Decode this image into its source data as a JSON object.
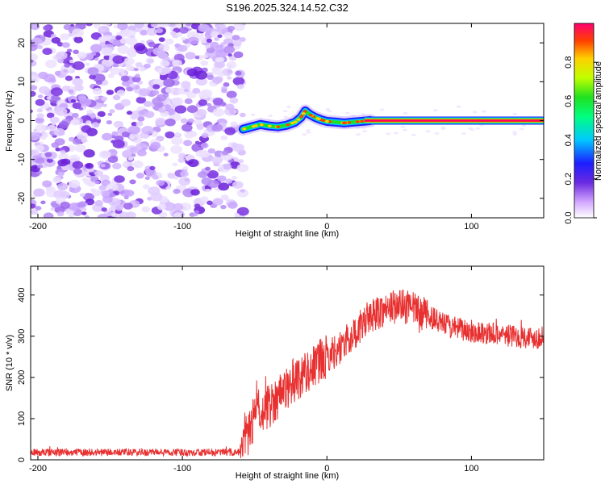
{
  "title": "S196.2025.324.14.52.C32",
  "spectrogram": {
    "type": "heatmap",
    "xlabel": "Height of straight line (km)",
    "ylabel": "Frequency (Hz)",
    "xlim": [
      -205,
      150
    ],
    "ylim": [
      -25,
      25
    ],
    "xticks": [
      -200,
      -100,
      0,
      100
    ],
    "xtick_labels": [
      "-200",
      "-100",
      "0",
      "100"
    ],
    "yticks": [
      -20,
      -10,
      0,
      10,
      20
    ],
    "ytick_labels": [
      "-20",
      "-10",
      "0",
      "10",
      "20"
    ],
    "noise_region_km": [
      -205,
      -58
    ],
    "signal_trace": [
      {
        "x": -58,
        "y": -2.2
      },
      {
        "x": -52,
        "y": -1.6
      },
      {
        "x": -46,
        "y": -1.0
      },
      {
        "x": -40,
        "y": -1.4
      },
      {
        "x": -34,
        "y": -1.6
      },
      {
        "x": -28,
        "y": -1.2
      },
      {
        "x": -22,
        "y": -0.4
      },
      {
        "x": -18,
        "y": 0.8
      },
      {
        "x": -15,
        "y": 2.5
      },
      {
        "x": -12,
        "y": 1.6
      },
      {
        "x": -8,
        "y": 0.8
      },
      {
        "x": -4,
        "y": 0.2
      },
      {
        "x": 0,
        "y": -0.2
      },
      {
        "x": 6,
        "y": -0.4
      },
      {
        "x": 12,
        "y": -0.6
      },
      {
        "x": 18,
        "y": -0.4
      },
      {
        "x": 24,
        "y": -0.2
      },
      {
        "x": 30,
        "y": 0.0
      },
      {
        "x": 150,
        "y": 0.0
      }
    ],
    "steady_line_start_km": 26,
    "colorbar": {
      "label": "Normalized spectral amplitude",
      "range": [
        0,
        1
      ],
      "ticks": [
        "0.0",
        "0.2",
        "0.4",
        "0.6",
        "0.8"
      ],
      "tick_values": [
        0.0,
        0.2,
        0.4,
        0.6,
        0.8
      ]
    }
  },
  "snr": {
    "type": "line",
    "xlabel": "Height of straight line (km)",
    "ylabel": "SNR (10 * v/v)",
    "xlim": [
      -205,
      150
    ],
    "ylim": [
      0,
      470
    ],
    "xticks": [
      -200,
      -100,
      0,
      100
    ],
    "xtick_labels": [
      "-200",
      "-100",
      "0",
      "100"
    ],
    "yticks": [
      0,
      100,
      200,
      300,
      400
    ],
    "ytick_labels": [
      "0",
      "100",
      "200",
      "300",
      "400"
    ],
    "color": "#e83030",
    "envelope": [
      {
        "x": -205,
        "y": 18
      },
      {
        "x": -60,
        "y": 18
      },
      {
        "x": -48,
        "y": 120
      },
      {
        "x": -40,
        "y": 130
      },
      {
        "x": -30,
        "y": 170
      },
      {
        "x": -20,
        "y": 200
      },
      {
        "x": -10,
        "y": 225
      },
      {
        "x": 0,
        "y": 250
      },
      {
        "x": 10,
        "y": 275
      },
      {
        "x": 20,
        "y": 310
      },
      {
        "x": 30,
        "y": 350
      },
      {
        "x": 40,
        "y": 365
      },
      {
        "x": 50,
        "y": 375
      },
      {
        "x": 60,
        "y": 365
      },
      {
        "x": 70,
        "y": 350
      },
      {
        "x": 80,
        "y": 330
      },
      {
        "x": 90,
        "y": 318
      },
      {
        "x": 100,
        "y": 312
      },
      {
        "x": 110,
        "y": 308
      },
      {
        "x": 120,
        "y": 305
      },
      {
        "x": 130,
        "y": 300
      },
      {
        "x": 140,
        "y": 298
      },
      {
        "x": 150,
        "y": 296
      }
    ]
  }
}
